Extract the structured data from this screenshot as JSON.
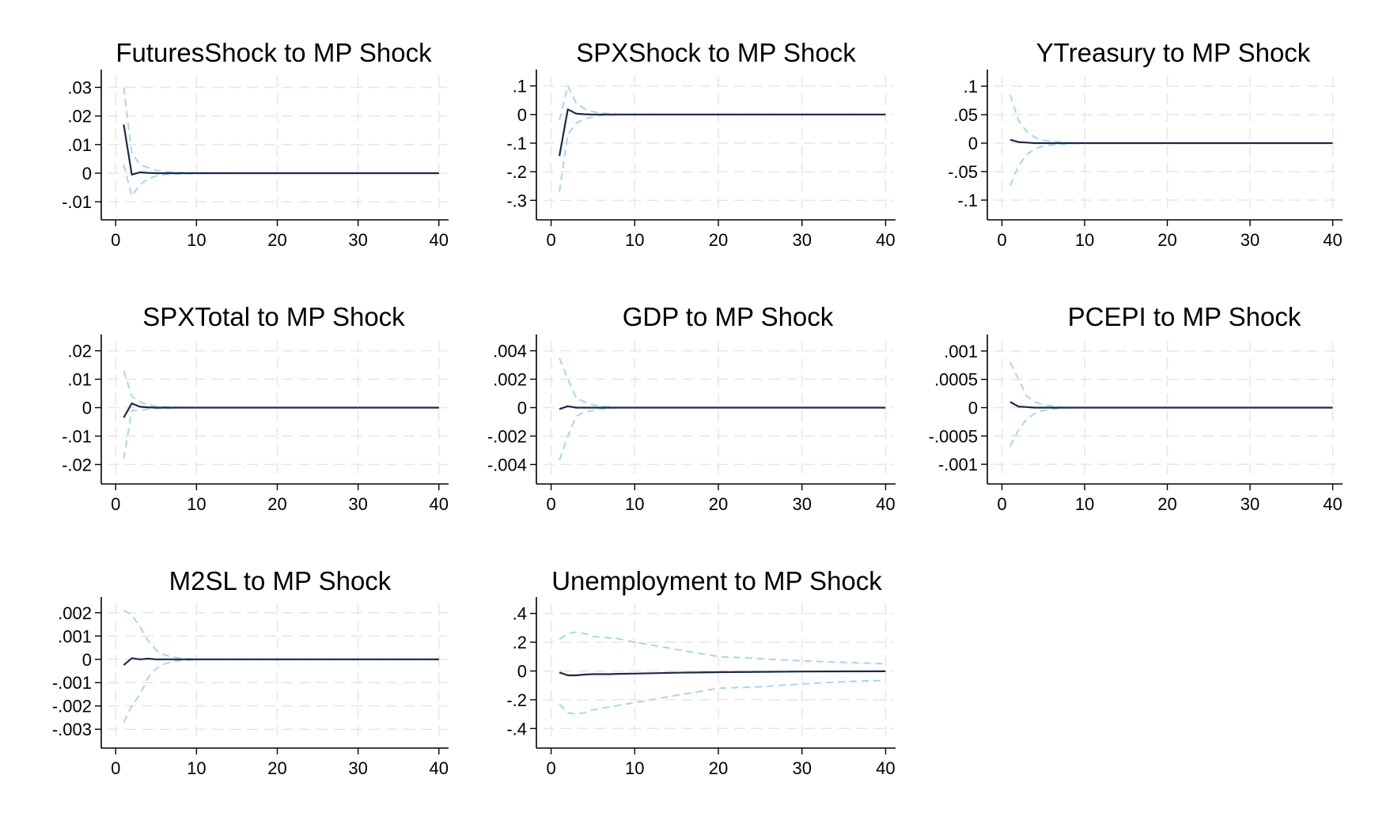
{
  "chart_data": [
    {
      "type": "line",
      "title": "FuturesShock to MP Shock",
      "x": [
        1,
        2,
        3,
        4,
        5,
        6,
        7,
        8,
        10,
        15,
        20,
        25,
        30,
        35,
        40
      ],
      "xticks": [
        "0",
        "10",
        "20",
        "30",
        "40"
      ],
      "xlim": [
        -1,
        41
      ],
      "ylim": [
        -0.013,
        0.034
      ],
      "yticks": [
        0.03,
        0.02,
        0.01,
        0,
        -0.01
      ],
      "yticklabels": [
        ".03",
        ".02",
        ".01",
        "0",
        "-.01"
      ],
      "series": [
        {
          "role": "lower",
          "style": "dashed",
          "color": "#a9d6ea",
          "values": [
            0.003,
            -0.008,
            -0.004,
            -0.002,
            -0.001,
            -0.0005,
            -0.0003,
            -0.0002,
            -0.0001,
            0,
            0,
            0,
            0,
            0,
            0
          ]
        },
        {
          "role": "upper",
          "style": "dashed",
          "color": "#a9d6ea",
          "values": [
            0.03,
            0.007,
            0.003,
            0.002,
            0.001,
            0.0006,
            0.0004,
            0.0002,
            0.0001,
            0,
            0,
            0,
            0,
            0,
            0
          ]
        },
        {
          "role": "irf",
          "style": "solid",
          "color": "#1b2a47",
          "values": [
            0.017,
            -0.0005,
            0.0003,
            0.0001,
            0,
            0,
            0,
            0,
            0,
            0,
            0,
            0,
            0,
            0,
            0
          ]
        }
      ]
    },
    {
      "type": "line",
      "title": "SPXShock to MP Shock",
      "x": [
        1,
        2,
        3,
        4,
        5,
        6,
        7,
        8,
        10,
        15,
        20,
        25,
        30,
        35,
        40
      ],
      "xticks": [
        "0",
        "10",
        "20",
        "30",
        "40"
      ],
      "xlim": [
        -1,
        41
      ],
      "ylim": [
        -0.335,
        0.135
      ],
      "yticks": [
        0.1,
        0,
        -0.1,
        -0.2,
        -0.3
      ],
      "yticklabels": [
        ".1",
        "0",
        "-.1",
        "-.2",
        "-.3"
      ],
      "series": [
        {
          "role": "lower",
          "style": "dashed",
          "color": "#a9d6ea",
          "values": [
            -0.27,
            -0.07,
            -0.03,
            -0.015,
            -0.008,
            -0.004,
            -0.002,
            -0.001,
            0,
            0,
            0,
            0,
            0,
            0,
            0
          ]
        },
        {
          "role": "upper",
          "style": "dashed",
          "color": "#a9d6ea",
          "values": [
            -0.02,
            0.1,
            0.04,
            0.02,
            0.01,
            0.005,
            0.003,
            0.001,
            0,
            0,
            0,
            0,
            0,
            0,
            0
          ]
        },
        {
          "role": "irf",
          "style": "solid",
          "color": "#1b2a47",
          "values": [
            -0.145,
            0.018,
            0.003,
            0.001,
            0,
            0,
            0,
            0,
            0,
            0,
            0,
            0,
            0,
            0,
            0
          ]
        }
      ]
    },
    {
      "type": "line",
      "title": "YTreasury to MP Shock",
      "x": [
        1,
        2,
        3,
        4,
        5,
        6,
        7,
        8,
        10,
        15,
        20,
        25,
        30,
        35,
        40
      ],
      "xticks": [
        "0",
        "10",
        "20",
        "30",
        "40"
      ],
      "xlim": [
        -1,
        41
      ],
      "ylim": [
        -0.118,
        0.118
      ],
      "yticks": [
        0.1,
        0.05,
        0,
        -0.05,
        -0.1
      ],
      "yticklabels": [
        ".1",
        ".05",
        "0",
        "-.05",
        "-.1"
      ],
      "series": [
        {
          "role": "lower",
          "style": "dashed",
          "color": "#a9d6ea",
          "values": [
            -0.075,
            -0.04,
            -0.02,
            -0.01,
            -0.005,
            -0.003,
            -0.002,
            -0.001,
            0,
            0,
            0,
            0,
            0,
            0,
            0
          ]
        },
        {
          "role": "upper",
          "style": "dashed",
          "color": "#a9d6ea",
          "values": [
            0.085,
            0.04,
            0.02,
            0.01,
            0.005,
            0.003,
            0.002,
            0.001,
            0,
            0,
            0,
            0,
            0,
            0,
            0
          ]
        },
        {
          "role": "irf",
          "style": "solid",
          "color": "#1b2a47",
          "values": [
            0.006,
            0.002,
            0.001,
            0,
            0,
            0,
            0,
            0,
            0,
            0,
            0,
            0,
            0,
            0,
            0
          ]
        }
      ]
    },
    {
      "type": "line",
      "title": "SPXTotal to MP Shock",
      "x": [
        1,
        2,
        3,
        4,
        5,
        6,
        7,
        8,
        10,
        15,
        20,
        25,
        30,
        35,
        40
      ],
      "xticks": [
        "0",
        "10",
        "20",
        "30",
        "40"
      ],
      "xlim": [
        -1,
        41
      ],
      "ylim": [
        -0.0235,
        0.0235
      ],
      "yticks": [
        0.02,
        0.01,
        0,
        -0.01,
        -0.02
      ],
      "yticklabels": [
        ".02",
        ".01",
        "0",
        "-.01",
        "-.02"
      ],
      "series": [
        {
          "role": "lower",
          "style": "dashed",
          "color": "#a9d6ea",
          "values": [
            -0.018,
            -0.001,
            -0.001,
            -0.0005,
            -0.0003,
            -0.0002,
            -0.0001,
            0,
            0,
            0,
            0,
            0,
            0,
            0,
            0
          ]
        },
        {
          "role": "upper",
          "style": "dashed",
          "color": "#a9d6ea",
          "values": [
            0.013,
            0.004,
            0.002,
            0.001,
            0.0005,
            0.0003,
            0.0002,
            0.0001,
            0,
            0,
            0,
            0,
            0,
            0,
            0
          ]
        },
        {
          "role": "irf",
          "style": "solid",
          "color": "#1b2a47",
          "values": [
            -0.0035,
            0.0015,
            0.0003,
            0.0001,
            0,
            0,
            0,
            0,
            0,
            0,
            0,
            0,
            0,
            0,
            0
          ]
        }
      ]
    },
    {
      "type": "line",
      "title": "GDP to MP Shock",
      "x": [
        1,
        2,
        3,
        4,
        5,
        6,
        7,
        8,
        10,
        15,
        20,
        25,
        30,
        35,
        40
      ],
      "xticks": [
        "0",
        "10",
        "20",
        "30",
        "40"
      ],
      "xlim": [
        -1,
        41
      ],
      "ylim": [
        -0.0047,
        0.0047
      ],
      "yticks": [
        0.004,
        0.002,
        0,
        -0.002,
        -0.004
      ],
      "yticklabels": [
        ".004",
        ".002",
        "0",
        "-.002",
        "-.004"
      ],
      "series": [
        {
          "role": "lower",
          "style": "dashed",
          "color": "#a9d6ea",
          "values": [
            -0.0037,
            -0.002,
            -0.0006,
            -0.0003,
            -0.0002,
            -0.0001,
            -5e-05,
            0,
            0,
            0,
            0,
            0,
            0,
            0,
            0
          ]
        },
        {
          "role": "upper",
          "style": "dashed",
          "color": "#a9d6ea",
          "values": [
            0.0035,
            0.002,
            0.0007,
            0.0004,
            0.0002,
            0.0001,
            5e-05,
            0,
            0,
            0,
            0,
            0,
            0,
            0,
            0
          ]
        },
        {
          "role": "irf",
          "style": "solid",
          "color": "#1b2a47",
          "values": [
            -0.0001,
            0.0001,
            0,
            0,
            0,
            0,
            0,
            0,
            0,
            0,
            0,
            0,
            0,
            0,
            0
          ]
        }
      ]
    },
    {
      "type": "line",
      "title": "PCEPI to MP Shock",
      "x": [
        1,
        2,
        3,
        4,
        5,
        6,
        7,
        8,
        10,
        15,
        20,
        25,
        30,
        35,
        40
      ],
      "xticks": [
        "0",
        "10",
        "20",
        "30",
        "40"
      ],
      "xlim": [
        -1,
        41
      ],
      "ylim": [
        -0.00118,
        0.00118
      ],
      "yticks": [
        0.001,
        0.0005,
        0,
        -0.0005,
        -0.001
      ],
      "yticklabels": [
        ".001",
        ".0005",
        "0",
        "-.0005",
        "-.001"
      ],
      "series": [
        {
          "role": "lower",
          "style": "dashed",
          "color": "#a9d6ea",
          "values": [
            -0.00068,
            -0.0004,
            -0.0002,
            -0.0001,
            -5e-05,
            -3e-05,
            -1e-05,
            0,
            0,
            0,
            0,
            0,
            0,
            0,
            0
          ]
        },
        {
          "role": "upper",
          "style": "dashed",
          "color": "#a9d6ea",
          "values": [
            0.0008,
            0.0005,
            0.0002,
            0.0001,
            5e-05,
            3e-05,
            1e-05,
            0,
            0,
            0,
            0,
            0,
            0,
            0,
            0
          ]
        },
        {
          "role": "irf",
          "style": "solid",
          "color": "#1b2a47",
          "values": [
            0.0001,
            2e-05,
            1e-05,
            0,
            0,
            0,
            0,
            0,
            0,
            0,
            0,
            0,
            0,
            0,
            0
          ]
        }
      ]
    },
    {
      "type": "line",
      "title": "M2SL to MP Shock",
      "x": [
        1,
        2,
        3,
        4,
        5,
        6,
        7,
        8,
        10,
        15,
        20,
        25,
        30,
        35,
        40
      ],
      "xticks": [
        "0",
        "10",
        "20",
        "30",
        "40"
      ],
      "xlim": [
        -1,
        41
      ],
      "ylim": [
        -0.0034,
        0.0024
      ],
      "yticks": [
        0.002,
        0.001,
        0,
        -0.001,
        -0.002,
        -0.003
      ],
      "yticklabels": [
        ".002",
        ".001",
        "0",
        "-.001",
        "-.002",
        "-.003"
      ],
      "series": [
        {
          "role": "lower",
          "style": "dashed",
          "color": "#a9d6ea",
          "values": [
            -0.0027,
            -0.002,
            -0.0015,
            -0.0008,
            -0.0004,
            -0.0002,
            -0.0001,
            -5e-05,
            0,
            0,
            0,
            0,
            0,
            0,
            0
          ]
        },
        {
          "role": "upper",
          "style": "dashed",
          "color": "#a9d6ea",
          "values": [
            0.0021,
            0.0019,
            0.0014,
            0.0008,
            0.0004,
            0.0002,
            0.0001,
            5e-05,
            0,
            0,
            0,
            0,
            0,
            0,
            0
          ]
        },
        {
          "role": "irf",
          "style": "solid",
          "color": "#1b2a47",
          "values": [
            -0.00025,
            5e-05,
            0,
            3e-05,
            0,
            0,
            0,
            0,
            0,
            0,
            0,
            0,
            0,
            0,
            0
          ]
        }
      ]
    },
    {
      "type": "line",
      "title": "Unemployment to MP Shock",
      "x": [
        1,
        2,
        3,
        4,
        5,
        6,
        7,
        8,
        10,
        15,
        20,
        25,
        30,
        35,
        40
      ],
      "xticks": [
        "0",
        "10",
        "20",
        "30",
        "40"
      ],
      "xlim": [
        -1,
        41
      ],
      "ylim": [
        -0.47,
        0.47
      ],
      "yticks": [
        0.4,
        0.2,
        0,
        -0.2,
        -0.4
      ],
      "yticklabels": [
        ".4",
        ".2",
        "0",
        "-.2",
        "-.4"
      ],
      "series": [
        {
          "role": "lower",
          "style": "dashed",
          "color": "#a9d6ea",
          "values": [
            -0.23,
            -0.29,
            -0.3,
            -0.29,
            -0.27,
            -0.26,
            -0.25,
            -0.24,
            -0.22,
            -0.17,
            -0.12,
            -0.11,
            -0.09,
            -0.075,
            -0.065
          ]
        },
        {
          "role": "upper",
          "style": "dashed",
          "color": "#a9d6ea",
          "values": [
            0.22,
            0.26,
            0.27,
            0.26,
            0.24,
            0.235,
            0.23,
            0.225,
            0.2,
            0.15,
            0.1,
            0.085,
            0.07,
            0.06,
            0.05
          ]
        },
        {
          "role": "irf",
          "style": "solid",
          "color": "#1b2a47",
          "values": [
            -0.01,
            -0.03,
            -0.03,
            -0.025,
            -0.022,
            -0.022,
            -0.022,
            -0.02,
            -0.018,
            -0.012,
            -0.008,
            -0.006,
            -0.004,
            -0.003,
            -0.002
          ]
        }
      ]
    }
  ]
}
